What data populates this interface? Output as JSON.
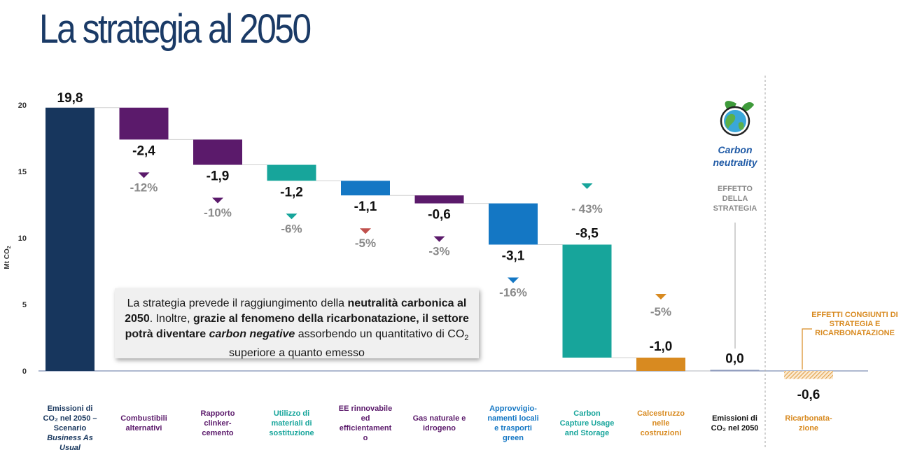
{
  "title": "La strategia al 2050",
  "colors": {
    "navy": "#17365d",
    "purple": "#5b1a6b",
    "teal": "#17a59b",
    "blue": "#1477c4",
    "orange": "#d88a20",
    "neutral": "#8e9bbd",
    "red": "#c0504d",
    "teal_text": "#17a59b",
    "orange_text": "#d88a20",
    "purple_text": "#5b1a6b",
    "blue_text": "#1477c4",
    "navy_text": "#17365d"
  },
  "callout": {
    "p1": "La strategia prevede il raggiungimento della ",
    "b1": "neutralità carbonica al 2050",
    "p2": ". Inoltre, ",
    "b2": "grazie al fenomeno della ricarbonatazione, il settore potrà diventare ",
    "bi": "carbon negative",
    "p3": " assorbendo un quantitativo di CO",
    "sub": "2",
    "p4": " superiore a quanto emesso"
  },
  "annotations": {
    "carbon_neutrality": [
      "Carbon",
      "neutrality"
    ],
    "effetto_strategia": [
      "EFFETTO",
      "DELLA",
      "STRATEGIA"
    ],
    "effetti_congiunti": [
      "EFFETTI CONGIUNTI DI",
      "STRATEGIA E",
      "RICARBONATAZIONE"
    ],
    "globe_icon": "globe-leaf-icon"
  },
  "chart_data": {
    "type": "bar",
    "subtype": "waterfall",
    "ylabel": "Mt CO2",
    "ylim": [
      0,
      20
    ],
    "yticks": [
      0,
      5,
      10,
      15,
      20
    ],
    "grid": false,
    "bars": [
      {
        "label_lines": [
          "Emissioni di",
          "CO₂ nel 2050 –",
          "Scenario",
          "Business As",
          "Usual"
        ],
        "italic_lines": [
          3,
          4
        ],
        "base": 0,
        "top": 19.8,
        "value_label": "19,8",
        "pct": "",
        "color": "navy",
        "label_color": "navy_text"
      },
      {
        "label_lines": [
          "Combustibili",
          "alternativi"
        ],
        "base": 17.4,
        "top": 19.8,
        "value_label": "-2,4",
        "pct": "-12%",
        "color": "purple",
        "arrow_color": "purple",
        "label_color": "purple_text"
      },
      {
        "label_lines": [
          "Rapporto",
          "clinker-",
          "cemento"
        ],
        "base": 15.5,
        "top": 17.4,
        "value_label": "-1,9",
        "pct": "-10%",
        "color": "purple",
        "arrow_color": "purple",
        "label_color": "purple_text"
      },
      {
        "label_lines": [
          "Utilizzo di",
          "materiali di",
          "sostituzione"
        ],
        "base": 14.3,
        "top": 15.5,
        "value_label": "-1,2",
        "pct": "-6%",
        "color": "teal",
        "arrow_color": "teal",
        "label_color": "teal_text"
      },
      {
        "label_lines": [
          "EE rinnovabile",
          "ed",
          "efficientament",
          "o"
        ],
        "base": 13.2,
        "top": 14.3,
        "value_label": "-1,1",
        "pct": "-5%",
        "color": "blue",
        "arrow_color": "red",
        "label_color": "purple_text"
      },
      {
        "label_lines": [
          "Gas naturale e",
          "idrogeno"
        ],
        "base": 12.6,
        "top": 13.2,
        "value_label": "-0,6",
        "pct": "-3%",
        "color": "purple",
        "arrow_color": "purple",
        "label_color": "purple_text"
      },
      {
        "label_lines": [
          "Approvvigio-",
          "namenti locali",
          "e trasporti",
          "green"
        ],
        "base": 9.5,
        "top": 12.6,
        "value_label": "-3,1",
        "pct": "-16%",
        "color": "blue",
        "arrow_color": "blue",
        "label_color": "blue_text"
      },
      {
        "label_lines": [
          "Carbon",
          "Capture Usage",
          "and Storage"
        ],
        "base": 1.0,
        "top": 9.5,
        "value_label": "-8,5",
        "pct": "- 43%",
        "color": "teal",
        "arrow_color": "teal",
        "label_color": "teal_text"
      },
      {
        "label_lines": [
          "Calcestruzzo",
          "nelle",
          "costruzioni"
        ],
        "base": 0,
        "top": 1.0,
        "value_label": "-1,0",
        "pct": "-5%",
        "color": "orange",
        "arrow_color": "orange",
        "label_color": "orange_text"
      },
      {
        "label_lines": [
          "Emissioni di",
          "CO₂ nel 2050"
        ],
        "base": 0,
        "top": 0.08,
        "value_label": "0,0",
        "pct": "",
        "color": "neutral",
        "label_color": "black"
      },
      {
        "label_lines": [
          "Ricarbonata-",
          "zione"
        ],
        "base": -0.6,
        "top": 0,
        "value_label": "-0,6",
        "pct": "",
        "color": "orange",
        "hatched": true,
        "label_color": "orange_text"
      }
    ]
  }
}
